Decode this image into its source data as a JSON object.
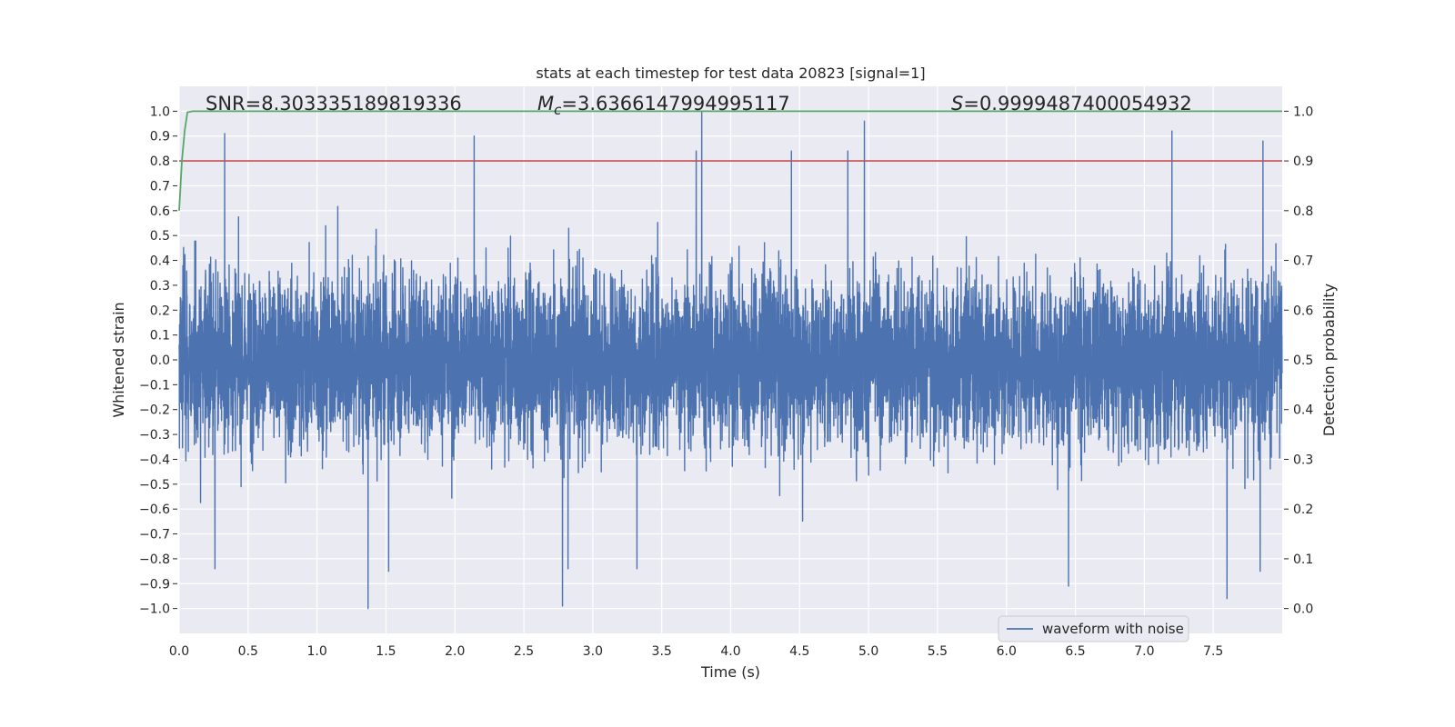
{
  "chart_data": {
    "type": "line",
    "title": "stats at each timestep for test data 20823 [signal=1]",
    "xlabel": "Time (s)",
    "ylabel": "Whitened strain",
    "y2label": "Detection probability",
    "xlim": [
      0.0,
      8.0
    ],
    "ylim": [
      -1.1,
      1.1
    ],
    "y2lim": [
      -0.05,
      1.05
    ],
    "xticks": [
      "0.0",
      "0.5",
      "1.0",
      "1.5",
      "2.0",
      "2.5",
      "3.0",
      "3.5",
      "4.0",
      "4.5",
      "5.0",
      "5.5",
      "6.0",
      "6.5",
      "7.0",
      "7.5"
    ],
    "yticks": [
      "1.0",
      "0.9",
      "0.8",
      "0.7",
      "0.6",
      "0.5",
      "0.4",
      "0.3",
      "0.2",
      "0.1",
      "0.0",
      "−0.1",
      "−0.2",
      "−0.3",
      "−0.4",
      "−0.5",
      "−0.6",
      "−0.7",
      "−0.8",
      "−0.9",
      "−1.0"
    ],
    "y2ticks": [
      "1.0",
      "0.9",
      "0.8",
      "0.7",
      "0.6",
      "0.5",
      "0.4",
      "0.3",
      "0.2",
      "0.1",
      "0.0"
    ],
    "grid": true,
    "legend_position": "lower-right",
    "annotations": {
      "snr": "SNR=8.303335189819336",
      "mc_symbol": "M",
      "mc_sub": "c",
      "mc_value": "=3.6366147994995117",
      "s_symbol": "S",
      "s_value": "=0.9999487400054932"
    },
    "series": [
      {
        "name": "waveform with noise",
        "color": "#4c72b0",
        "axis": "left",
        "sample_rate_hz": 1024,
        "duration_s": 8.0,
        "envelope_typical": 0.55,
        "notable_peaks": [
          {
            "t": 0.33,
            "v": 0.91
          },
          {
            "t": 2.14,
            "v": 0.9
          },
          {
            "t": 3.79,
            "v": 1.0
          },
          {
            "t": 3.75,
            "v": 0.84
          },
          {
            "t": 4.97,
            "v": 0.96
          },
          {
            "t": 7.2,
            "v": 0.92
          },
          {
            "t": 7.86,
            "v": 0.88
          },
          {
            "t": 4.85,
            "v": 0.84
          },
          {
            "t": 4.44,
            "v": 0.84
          }
        ],
        "notable_troughs": [
          {
            "t": 1.37,
            "v": -1.0
          },
          {
            "t": 2.78,
            "v": -0.99
          },
          {
            "t": 6.45,
            "v": -0.91
          },
          {
            "t": 7.6,
            "v": -0.96
          },
          {
            "t": 0.26,
            "v": -0.84
          },
          {
            "t": 1.52,
            "v": -0.85
          },
          {
            "t": 3.32,
            "v": -0.84
          },
          {
            "t": 7.84,
            "v": -0.85
          },
          {
            "t": 2.82,
            "v": -0.84
          }
        ]
      },
      {
        "name": "",
        "color": "#55a868",
        "axis": "right",
        "x": [
          0.0,
          0.02,
          0.04,
          0.06,
          0.1,
          0.15,
          8.0
        ],
        "y": [
          0.8,
          0.9,
          0.96,
          0.998,
          1.0,
          1.0,
          1.0
        ]
      },
      {
        "name": "",
        "color": "#c44e52",
        "axis": "left",
        "x": [
          0.0,
          8.0
        ],
        "y": [
          0.8,
          0.8
        ]
      }
    ]
  }
}
